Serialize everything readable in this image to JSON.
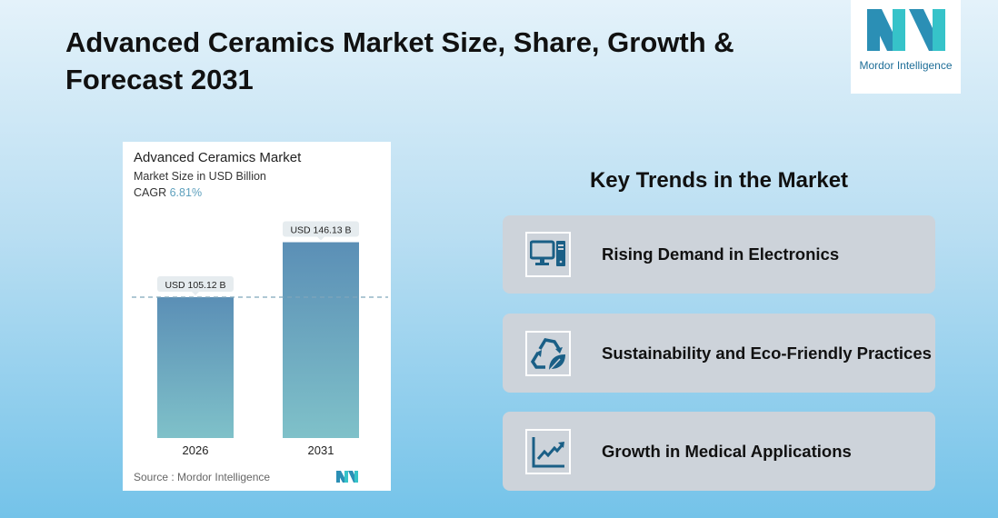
{
  "header": {
    "title": "Advanced Ceramics Market Size, Share, Growth & Forecast 2031"
  },
  "logo": {
    "text": "Mordor Intelligence"
  },
  "chart_card": {
    "title": "Advanced Ceramics Market",
    "subtitle": "Market Size in USD Billion",
    "cagr_label": "CAGR",
    "cagr_value": "6.81%",
    "source": "Source :  Mordor Intelligence"
  },
  "chart_data": {
    "type": "bar",
    "title": "Advanced Ceramics Market",
    "categories": [
      "2026",
      "2031"
    ],
    "values": [
      105.12,
      146.13
    ],
    "data_labels": [
      "USD 105.12 B",
      "USD 146.13 B"
    ],
    "ylabel": "Market Size in USD Billion",
    "ylim": [
      0,
      170
    ],
    "grid": false,
    "reference_line": 105.12,
    "colors": {
      "bar_top": "#5b8fb6",
      "bar_bottom": "#7fc1c9"
    }
  },
  "trends": {
    "heading": "Key Trends in the Market",
    "items": [
      {
        "label": "Rising Demand in Electronics",
        "icon": "computer-icon"
      },
      {
        "label": "Sustainability and Eco-Friendly Practices",
        "icon": "recycle-leaf-icon"
      },
      {
        "label": "Growth in Medical Applications",
        "icon": "growth-chart-icon"
      }
    ]
  },
  "colors": {
    "icon": "#1a5f86",
    "card": "#cdd3da"
  }
}
